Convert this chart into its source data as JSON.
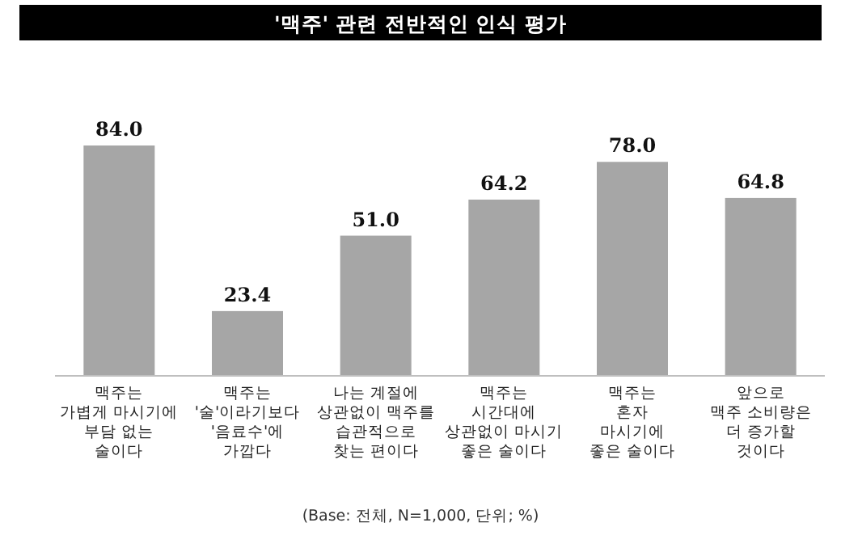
{
  "chart_data": {
    "type": "bar",
    "title": "'맥주' 관련 전반적인 인식 평가",
    "categories": [
      "맥주는\n가볍게 마시기에\n부담 없는\n술이다",
      "맥주는\n'술'이라기보다\n'음료수'에\n가깝다",
      "나는 계절에\n상관없이 맥주를\n습관적으로\n찾는 편이다",
      "맥주는\n시간대에\n상관없이 마시기\n좋은 술이다",
      "맥주는\n혼자\n마시기에\n좋은 술이다",
      "앞으로\n맥주 소비량은\n더 증가할\n것이다"
    ],
    "values": [
      84.0,
      23.4,
      51.0,
      64.2,
      78.0,
      64.8
    ],
    "value_labels": [
      "84.0",
      "23.4",
      "51.0",
      "64.2",
      "78.0",
      "64.8"
    ],
    "color": "#a6a6a6",
    "annotations": [
      "(Base: 전체, N=1,000, 단위; %)"
    ]
  }
}
